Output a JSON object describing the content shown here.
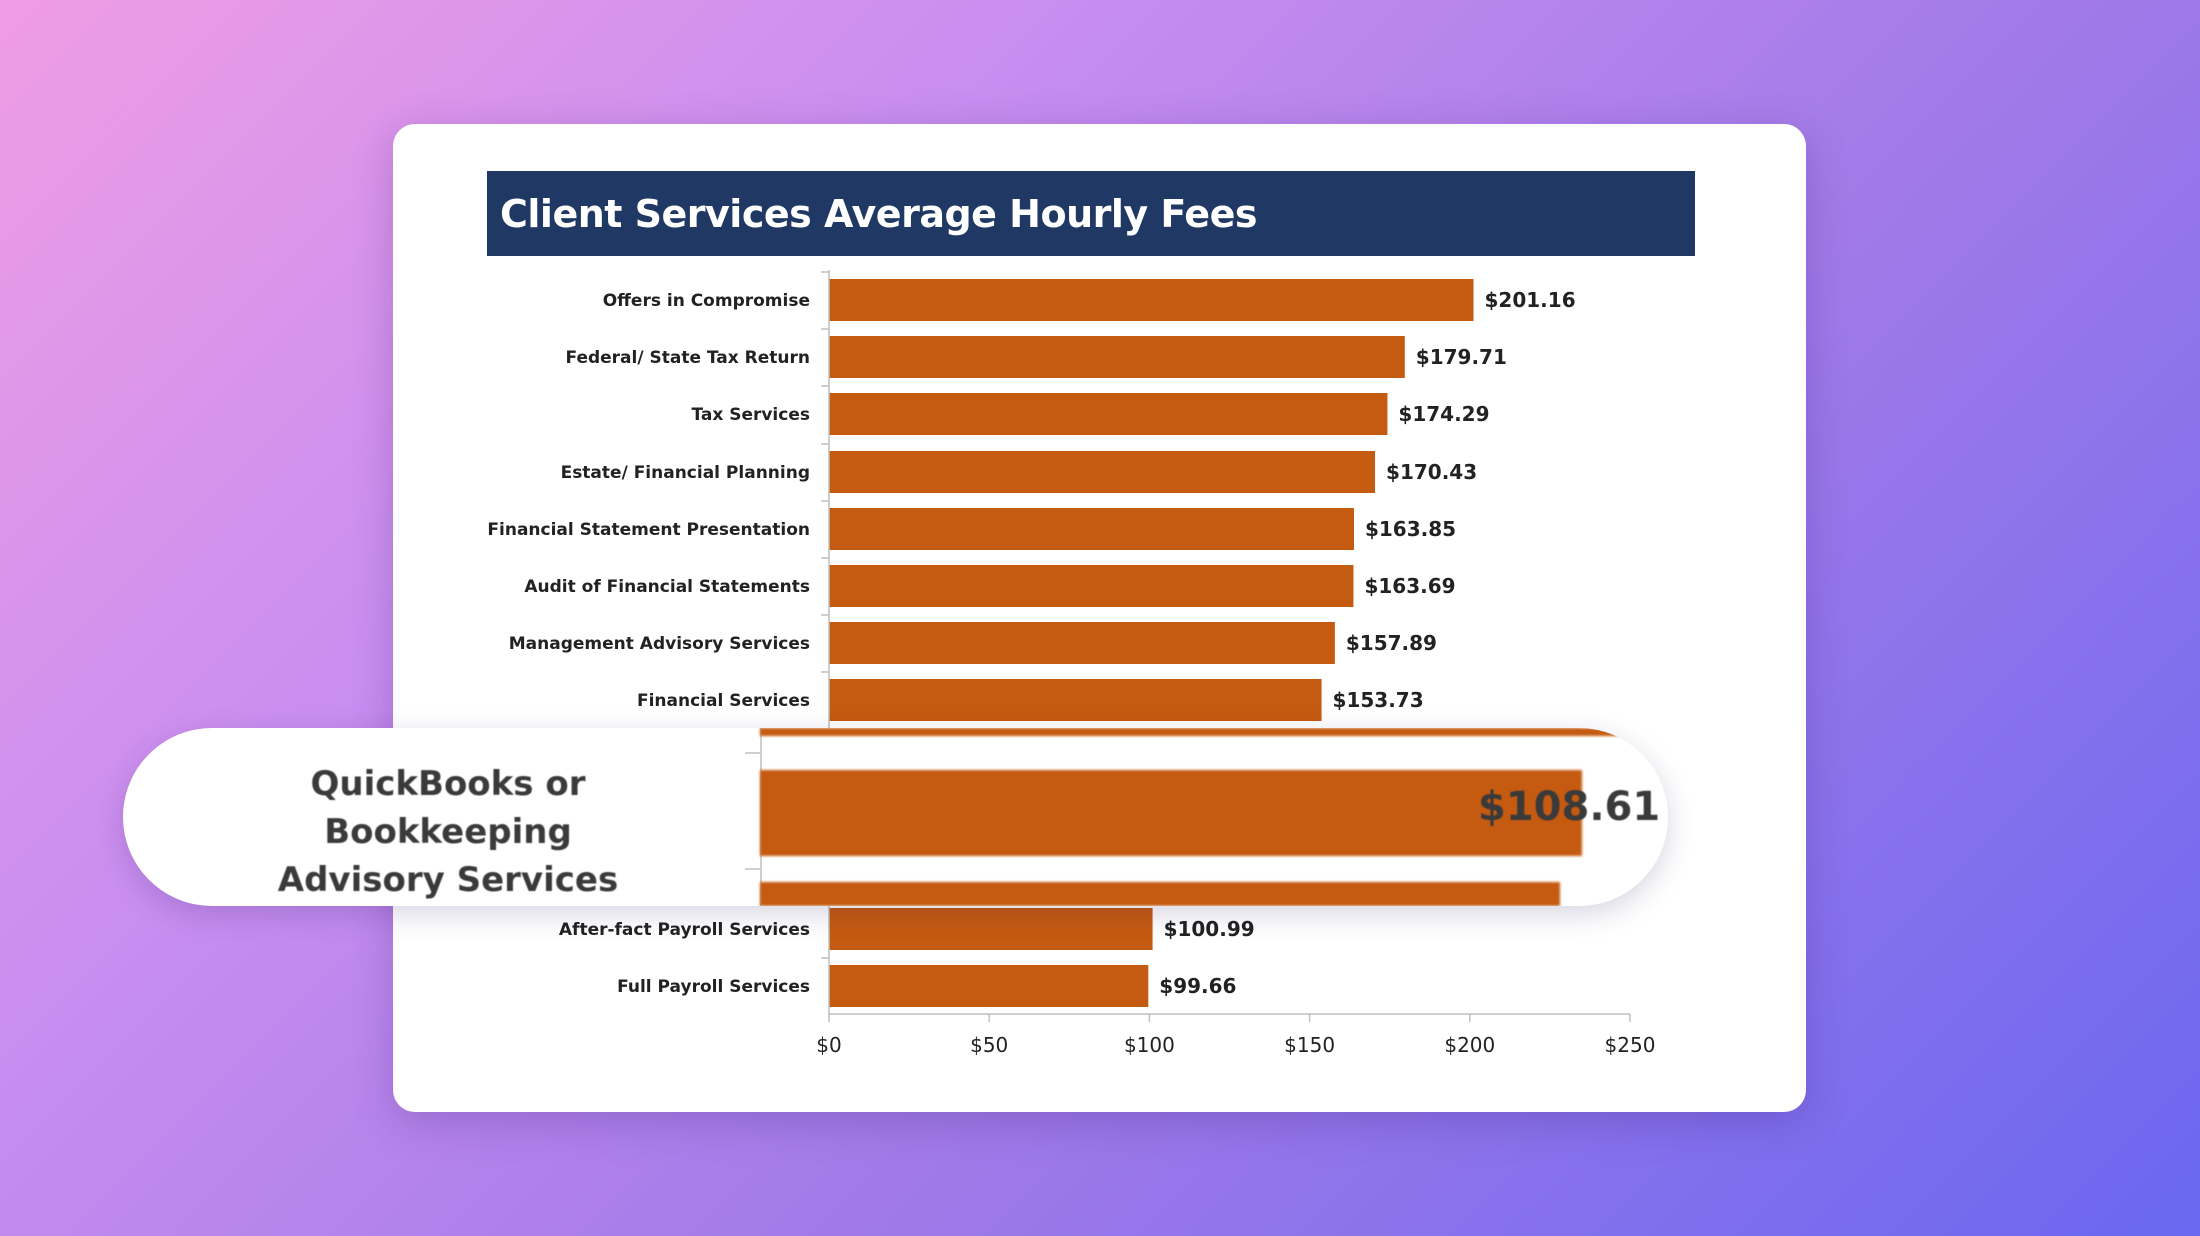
{
  "chart_data": {
    "type": "bar",
    "orientation": "horizontal",
    "title": "Client Services Average Hourly Fees",
    "xlabel": "",
    "ylabel": "",
    "xlim": [
      0,
      250
    ],
    "x_ticks": [
      "$0",
      "$50",
      "$100",
      "$150",
      "$200",
      "$250"
    ],
    "x_tick_values": [
      0,
      50,
      100,
      150,
      200,
      250
    ],
    "grid": false,
    "bar_color": "#c55a11",
    "title_bg_color": "#203864",
    "categories": [
      "Offers in Compromise",
      "Federal/ State Tax Return",
      "Tax Services",
      "Estate/ Financial Planning",
      "Financial Statement Presentation",
      "Audit of Financial Statements",
      "Management Advisory Services",
      "Financial Services",
      "After-fact Payroll Services",
      "Full Payroll Services"
    ],
    "values": [
      201.16,
      179.71,
      174.29,
      170.43,
      163.85,
      163.69,
      157.89,
      153.73,
      100.99,
      99.66
    ],
    "value_labels": [
      "$201.16",
      "$179.71",
      "$174.29",
      "$170.43",
      "$163.85",
      "$163.69",
      "$157.89",
      "$153.73",
      "$100.99",
      "$99.66"
    ],
    "highlight": {
      "label_line1": "QuickBooks or Bookkeeping",
      "label_line2": "Advisory Services",
      "value": 108.61,
      "value_label": "$108.61"
    }
  }
}
